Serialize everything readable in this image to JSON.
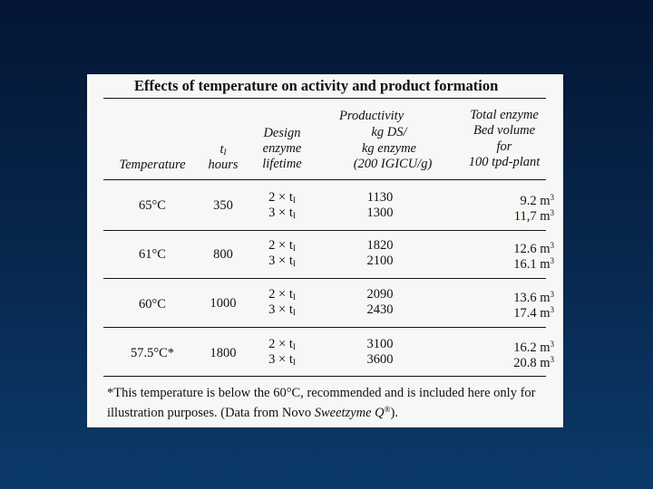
{
  "table": {
    "title": "Effects of temperature on activity and product formation",
    "headers": {
      "temperature": "Temperature",
      "t1_symbol": "t",
      "t1_sub": "I",
      "t1_unit": "hours",
      "design_1": "Design",
      "design_2": "enzyme",
      "design_3": "lifetime",
      "prod_1": "Productivity",
      "prod_2": "kg DS/",
      "prod_3": "kg enzyme",
      "prod_4": "(200 IGICU/g)",
      "bed_1": "Total enzyme",
      "bed_2": "Bed volume",
      "bed_3": "for",
      "bed_4": "100 tpd-plant"
    },
    "rows": [
      {
        "temp": "65°C",
        "t1": "350",
        "d1": "2 × t",
        "d2": "3 × t",
        "dsub": "I",
        "p1": "1130",
        "p2": "1300",
        "b1": "9.2 m",
        "b2": "11,7 m",
        "bsup": "3"
      },
      {
        "temp": "61°C",
        "t1": "800",
        "d1": "2 × t",
        "d2": "3 × t",
        "dsub": "I",
        "p1": "1820",
        "p2": "2100",
        "b1": "12.6 m",
        "b2": "16.1 m",
        "bsup": "3"
      },
      {
        "temp": "60°C",
        "t1": "1000",
        "d1": "2 × t",
        "d2": "3 × t",
        "dsub": "I",
        "p1": "2090",
        "p2": "2430",
        "b1": "13.6 m",
        "b2": "17.4 m",
        "bsup": "3"
      },
      {
        "temp": "57.5°C*",
        "t1": "1800",
        "d1": "2 × t",
        "d2": "3 × t",
        "dsub": "I",
        "p1": "3100",
        "p2": "3600",
        "b1": "16.2 m",
        "b2": "20.8 m",
        "bsup": "3"
      }
    ],
    "footnote_1": "*This temperature is below the 60°C, recommended and is included here only for illustration purposes. (Data from Novo ",
    "footnote_brand": "Sweetzyme Q",
    "footnote_reg": "®",
    "footnote_end": ")."
  }
}
